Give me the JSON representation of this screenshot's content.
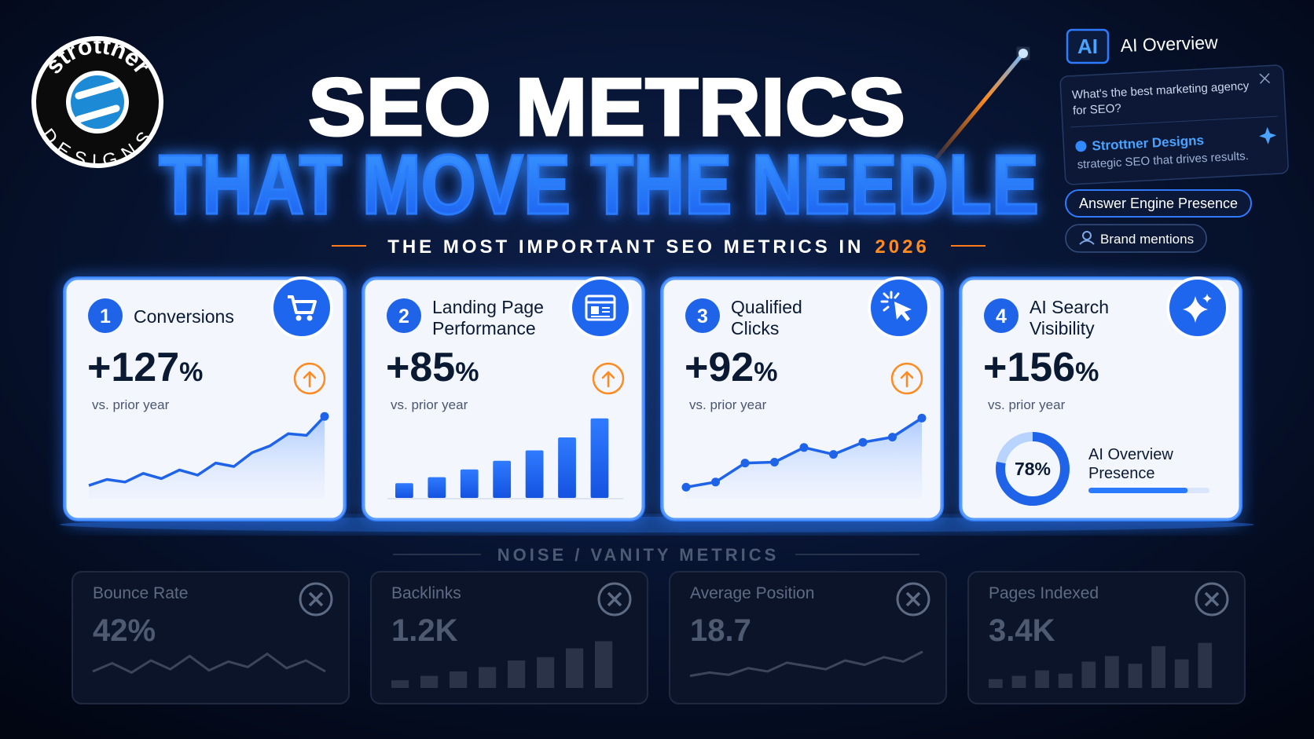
{
  "logo": {
    "top": "strottner",
    "bottom": "DESIGNS"
  },
  "header": {
    "title": "SEO METRICS",
    "title2": "THAT MOVE THE NEEDLE",
    "subtitle": "THE MOST IMPORTANT SEO METRICS IN",
    "year": "2026"
  },
  "ai_panel": {
    "badge": "AI",
    "label": "AI Overview",
    "question": [
      "What's the best marketing agency",
      "for SEO?"
    ],
    "answer": "Strottner Designs",
    "answer_text": "strategic SEO that drives results.",
    "chips": [
      "Answer Engine Presence",
      "Brand mentions"
    ]
  },
  "cards": [
    {
      "number": "1",
      "title": [
        "Conversions"
      ],
      "icon": "cart",
      "value": "+127",
      "unit": "%",
      "note": "vs. prior year",
      "chart": {
        "type": "area",
        "values": [
          8,
          15,
          12,
          22,
          16,
          26,
          20,
          34,
          30,
          46,
          54,
          68,
          66,
          88
        ]
      }
    },
    {
      "number": "2",
      "title": [
        "Landing Page",
        "Performance"
      ],
      "icon": "page",
      "value": "+85",
      "unit": "%",
      "note": "vs. prior year",
      "chart": {
        "type": "bars",
        "values": [
          17,
          24,
          33,
          43,
          55,
          70,
          92
        ]
      }
    },
    {
      "number": "3",
      "title": [
        "Qualified",
        "Clicks"
      ],
      "icon": "click",
      "value": "+92",
      "unit": "%",
      "note": "vs. prior year",
      "chart": {
        "type": "dots",
        "values": [
          6,
          12,
          34,
          35,
          52,
          44,
          58,
          64,
          86
        ]
      }
    },
    {
      "number": "4",
      "title": [
        "AI Search",
        "Visibility"
      ],
      "icon": "spark",
      "value": "+156",
      "unit": "%",
      "note": "vs. prior year",
      "chart": {
        "type": "donut",
        "value": 78,
        "value_label": "78%",
        "label": [
          "AI Overview",
          "Presence"
        ],
        "bar": 82
      }
    }
  ],
  "noise": {
    "title": "NOISE / VANITY METRICS",
    "cards": [
      {
        "label": "Bounce Rate",
        "value": "42%",
        "chart": {
          "type": "line",
          "values": [
            30,
            45,
            28,
            50,
            34,
            58,
            32,
            48,
            38,
            62,
            36,
            50,
            30
          ]
        }
      },
      {
        "label": "Backlinks",
        "value": "1.2K",
        "chart": {
          "type": "bars",
          "values": [
            14,
            22,
            30,
            38,
            50,
            56,
            72,
            85
          ]
        }
      },
      {
        "label": "Average Position",
        "value": "18.7",
        "chart": {
          "type": "line",
          "values": [
            22,
            28,
            24,
            36,
            30,
            46,
            40,
            34,
            50,
            42,
            56,
            48,
            66
          ]
        }
      },
      {
        "label": "Pages Indexed",
        "value": "3.4K",
        "chart": {
          "type": "bars",
          "values": [
            16,
            22,
            32,
            26,
            48,
            58,
            44,
            76,
            52,
            82
          ]
        }
      }
    ]
  }
}
